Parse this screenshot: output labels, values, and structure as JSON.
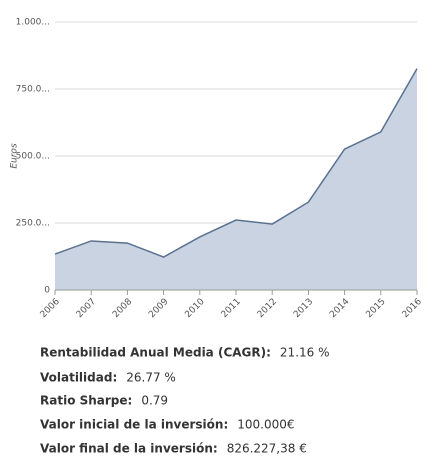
{
  "chart_data": {
    "type": "area",
    "y_label": "Euros",
    "categories": [
      "2006",
      "2007",
      "2008",
      "2009",
      "2010",
      "2011",
      "2012",
      "2013",
      "2014",
      "2015",
      "2016"
    ],
    "values": [
      134000,
      183000,
      175000,
      123000,
      198000,
      261000,
      246000,
      328000,
      526000,
      590000,
      826227.38
    ],
    "color": "#5a7190",
    "fill": "#c9d3e1",
    "ylim": [
      0,
      1000000
    ],
    "yticks": [
      0,
      {
        "value": 250000,
        "label": "250.0..."
      },
      {
        "value": 500000,
        "label": "500.0..."
      },
      {
        "value": 750000,
        "label": "750.0..."
      },
      {
        "value": 1000000,
        "label": "1.000..."
      }
    ],
    "grid": true
  },
  "stats": [
    {
      "label": "Rentabilidad Anual Media (CAGR):",
      "value": "21.16 %"
    },
    {
      "label": "Volatilidad:",
      "value": "26.77 %"
    },
    {
      "label": "Ratio Sharpe:",
      "value": "0.79"
    },
    {
      "label": "Valor inicial de la inversión:",
      "value": "100.000€"
    },
    {
      "label": "Valor final de la inversión:",
      "value": "826.227,38 €"
    }
  ]
}
